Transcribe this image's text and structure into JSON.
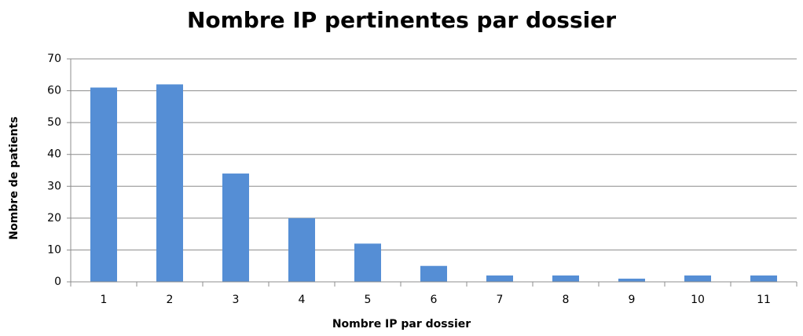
{
  "chart_data": {
    "type": "bar",
    "title": "Nombre IP pertinentes par dossier",
    "x_label": "Nombre IP par dossier",
    "y_label": "Nombre de patients",
    "categories": [
      "1",
      "2",
      "3",
      "4",
      "5",
      "6",
      "7",
      "8",
      "9",
      "10",
      "11"
    ],
    "values": [
      61,
      62,
      34,
      20,
      12,
      5,
      2,
      2,
      1,
      2,
      2
    ],
    "color": "#558ed5",
    "ylim": [
      0,
      70
    ],
    "yticks": [
      0,
      10,
      20,
      30,
      40,
      50,
      60,
      70
    ],
    "grid": true
  }
}
